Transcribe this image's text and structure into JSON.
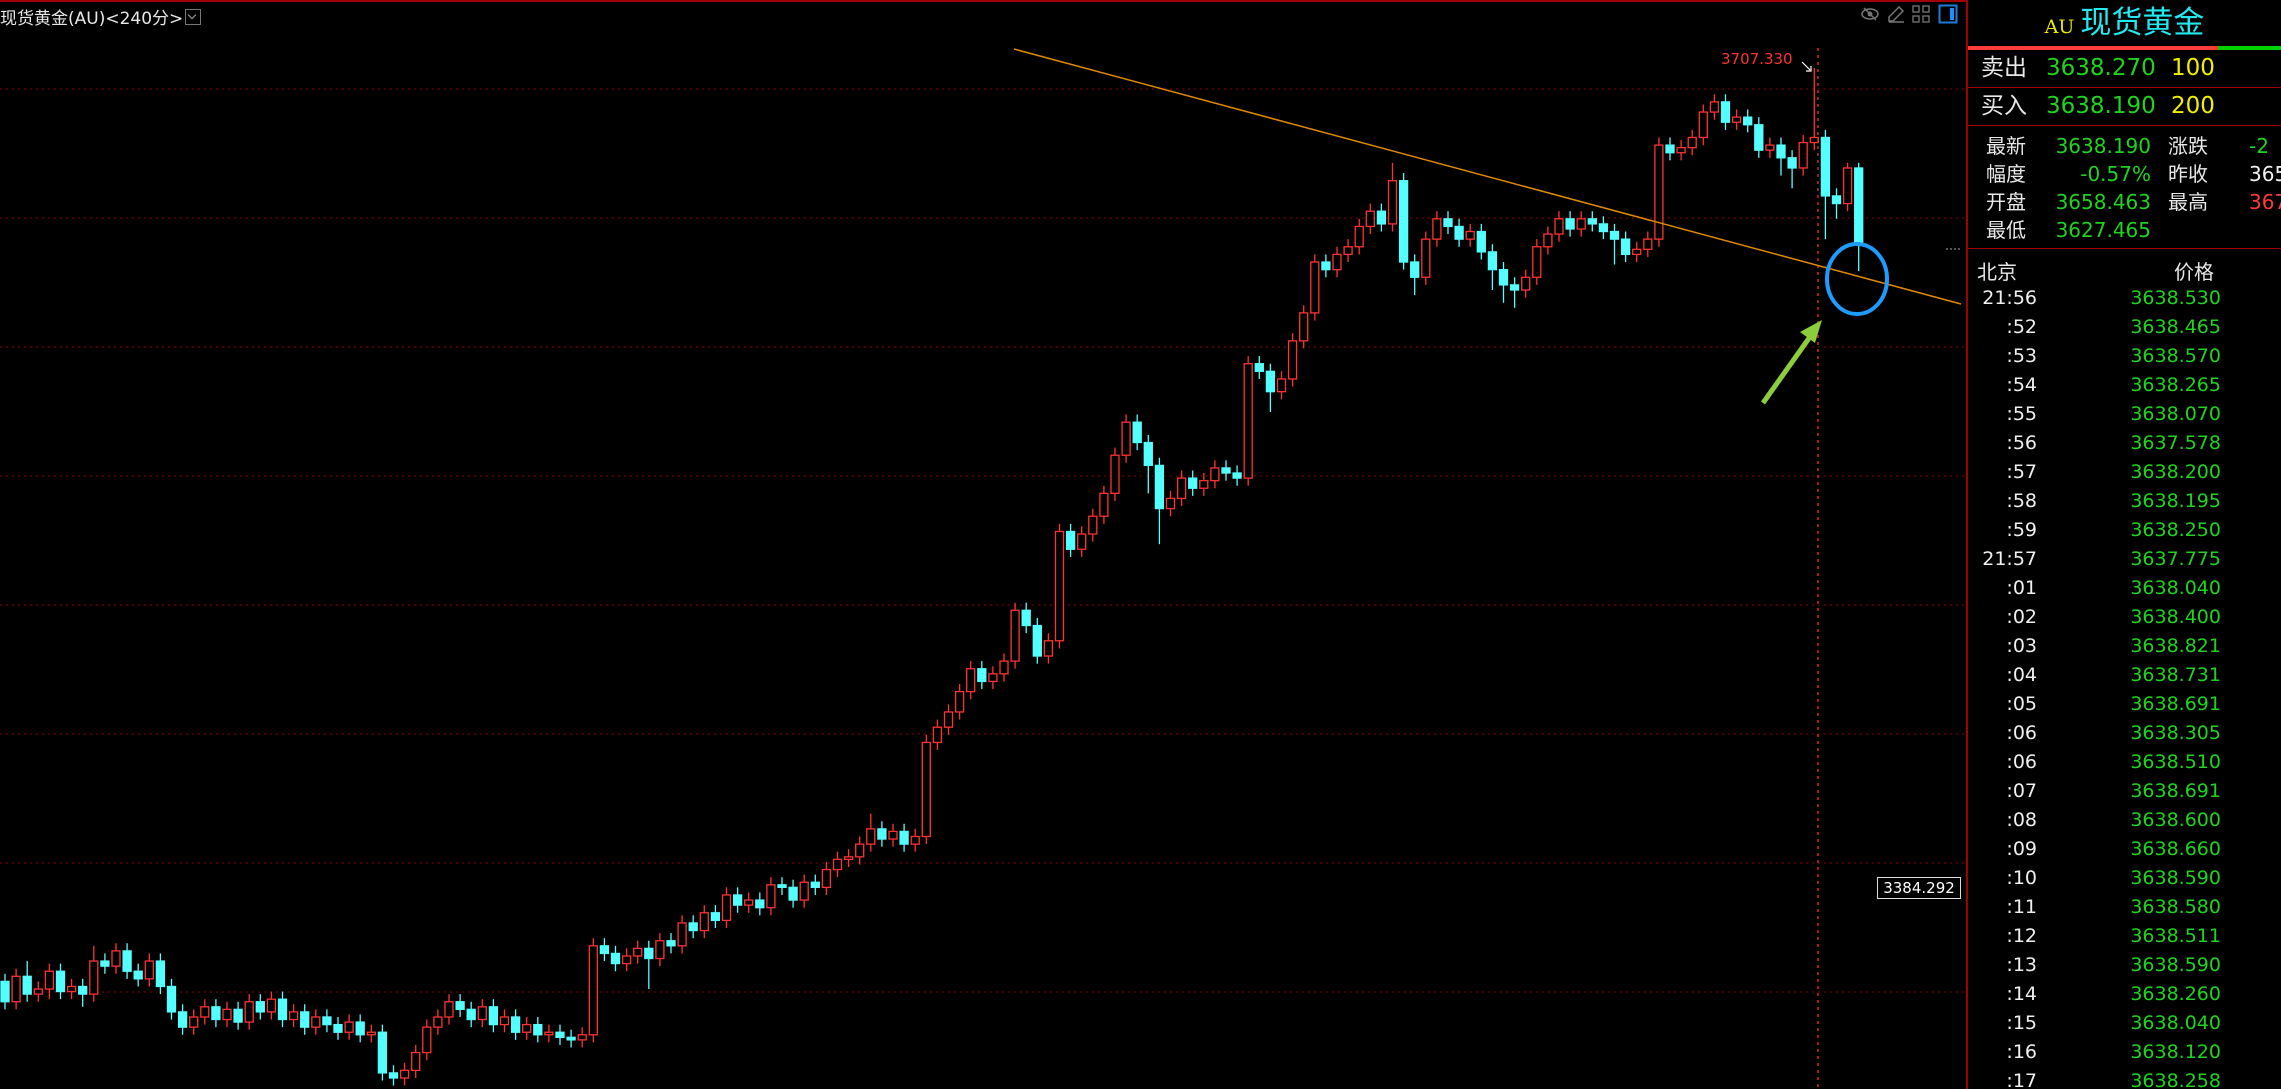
{
  "header": {
    "title": "现货黄金(AU)<240分>",
    "toolbar_icons": [
      "eye-hidden-icon",
      "pencil-icon",
      "grid-layout-icon",
      "side-panel-icon"
    ]
  },
  "chart": {
    "high_marker": "3707.330",
    "price_box": "3384.292",
    "colors": {
      "up": "#ff3232",
      "down": "#54ffff",
      "trendline": "#e08a00",
      "annotation_circle": "#1e9bff",
      "annotation_arrow": "#8ccd3c",
      "grid": "#8b0000"
    }
  },
  "chart_data": {
    "type": "candlestick",
    "title": "现货黄金(AU)<240分>",
    "fields": [
      "open",
      "high",
      "low",
      "close"
    ],
    "candles": [
      [
        3348,
        3351,
        3337,
        3340
      ],
      [
        3340,
        3353,
        3337,
        3350
      ],
      [
        3350,
        3356,
        3340,
        3343
      ],
      [
        3343,
        3348,
        3340,
        3345
      ],
      [
        3345,
        3355,
        3341,
        3352
      ],
      [
        3352,
        3355,
        3341,
        3344
      ],
      [
        3344,
        3349,
        3341,
        3346
      ],
      [
        3346,
        3349,
        3338,
        3343
      ],
      [
        3343,
        3362,
        3340,
        3356
      ],
      [
        3356,
        3359,
        3351,
        3354
      ],
      [
        3354,
        3363,
        3351,
        3360
      ],
      [
        3360,
        3363,
        3349,
        3352
      ],
      [
        3352,
        3355,
        3346,
        3349
      ],
      [
        3349,
        3359,
        3346,
        3356
      ],
      [
        3356,
        3359,
        3343,
        3346
      ],
      [
        3346,
        3349,
        3333,
        3336
      ],
      [
        3336,
        3339,
        3327,
        3330
      ],
      [
        3330,
        3337,
        3327,
        3334
      ],
      [
        3334,
        3341,
        3331,
        3338
      ],
      [
        3338,
        3341,
        3330,
        3333
      ],
      [
        3333,
        3340,
        3330,
        3337
      ],
      [
        3337,
        3340,
        3329,
        3332
      ],
      [
        3332,
        3343,
        3329,
        3340
      ],
      [
        3340,
        3343,
        3333,
        3336
      ],
      [
        3336,
        3344,
        3333,
        3341
      ],
      [
        3341,
        3344,
        3330,
        3333
      ],
      [
        3333,
        3339,
        3330,
        3336
      ],
      [
        3336,
        3339,
        3327,
        3330
      ],
      [
        3330,
        3337,
        3327,
        3334
      ],
      [
        3334,
        3337,
        3328,
        3331
      ],
      [
        3331,
        3334,
        3325,
        3328
      ],
      [
        3328,
        3335,
        3325,
        3332
      ],
      [
        3332,
        3335,
        3324,
        3327
      ],
      [
        3327,
        3331,
        3324,
        3328
      ],
      [
        3328,
        3331,
        3309,
        3312
      ],
      [
        3312,
        3315,
        3307,
        3310
      ],
      [
        3310,
        3316,
        3307,
        3313
      ],
      [
        3313,
        3323,
        3310,
        3320
      ],
      [
        3320,
        3333,
        3317,
        3330
      ],
      [
        3330,
        3337,
        3327,
        3334
      ],
      [
        3334,
        3343,
        3331,
        3340
      ],
      [
        3340,
        3343,
        3334,
        3337
      ],
      [
        3337,
        3340,
        3330,
        3333
      ],
      [
        3333,
        3341,
        3330,
        3338
      ],
      [
        3338,
        3341,
        3328,
        3331
      ],
      [
        3331,
        3337,
        3328,
        3334
      ],
      [
        3334,
        3337,
        3325,
        3328
      ],
      [
        3328,
        3334,
        3325,
        3331
      ],
      [
        3331,
        3334,
        3324,
        3327
      ],
      [
        3327,
        3331,
        3324,
        3328
      ],
      [
        3328,
        3331,
        3323,
        3326
      ],
      [
        3326,
        3329,
        3322,
        3325
      ],
      [
        3325,
        3330,
        3322,
        3327
      ],
      [
        3327,
        3365,
        3324,
        3362
      ],
      [
        3362,
        3365,
        3356,
        3359
      ],
      [
        3359,
        3362,
        3352,
        3355
      ],
      [
        3355,
        3361,
        3352,
        3358
      ],
      [
        3358,
        3364,
        3355,
        3361
      ],
      [
        3361,
        3364,
        3345,
        3357
      ],
      [
        3357,
        3367,
        3354,
        3364
      ],
      [
        3364,
        3367,
        3359,
        3362
      ],
      [
        3362,
        3374,
        3359,
        3371
      ],
      [
        3371,
        3374,
        3365,
        3368
      ],
      [
        3368,
        3378,
        3365,
        3375
      ],
      [
        3375,
        3378,
        3369,
        3372
      ],
      [
        3372,
        3385,
        3369,
        3382
      ],
      [
        3382,
        3385,
        3375,
        3378
      ],
      [
        3378,
        3383,
        3375,
        3380
      ],
      [
        3380,
        3383,
        3374,
        3377
      ],
      [
        3377,
        3389,
        3374,
        3386
      ],
      [
        3386,
        3389,
        3382,
        3385
      ],
      [
        3385,
        3388,
        3377,
        3380
      ],
      [
        3380,
        3390,
        3377,
        3387
      ],
      [
        3387,
        3390,
        3382,
        3385
      ],
      [
        3385,
        3395,
        3382,
        3392
      ],
      [
        3392,
        3399,
        3389,
        3396
      ],
      [
        3396,
        3400,
        3393,
        3397
      ],
      [
        3397,
        3405,
        3394,
        3402
      ],
      [
        3402,
        3414,
        3399,
        3408
      ],
      [
        3408,
        3411,
        3401,
        3404
      ],
      [
        3404,
        3410,
        3401,
        3407
      ],
      [
        3407,
        3410,
        3399,
        3402
      ],
      [
        3402,
        3408,
        3399,
        3405
      ],
      [
        3405,
        3445,
        3402,
        3442
      ],
      [
        3442,
        3451,
        3439,
        3448
      ],
      [
        3448,
        3457,
        3445,
        3454
      ],
      [
        3454,
        3465,
        3451,
        3462
      ],
      [
        3462,
        3474,
        3459,
        3471
      ],
      [
        3471,
        3474,
        3463,
        3466
      ],
      [
        3466,
        3472,
        3463,
        3469
      ],
      [
        3469,
        3477,
        3466,
        3474
      ],
      [
        3474,
        3497,
        3471,
        3494
      ],
      [
        3494,
        3497,
        3485,
        3488
      ],
      [
        3488,
        3491,
        3473,
        3476
      ],
      [
        3476,
        3485,
        3473,
        3482
      ],
      [
        3482,
        3528,
        3479,
        3525
      ],
      [
        3525,
        3528,
        3515,
        3518
      ],
      [
        3518,
        3527,
        3515,
        3524
      ],
      [
        3524,
        3534,
        3521,
        3531
      ],
      [
        3531,
        3543,
        3528,
        3540
      ],
      [
        3540,
        3558,
        3537,
        3555
      ],
      [
        3555,
        3571,
        3552,
        3568
      ],
      [
        3568,
        3571,
        3557,
        3560
      ],
      [
        3560,
        3563,
        3540,
        3551
      ],
      [
        3551,
        3554,
        3520,
        3534
      ],
      [
        3534,
        3541,
        3531,
        3538
      ],
      [
        3538,
        3549,
        3535,
        3546
      ],
      [
        3546,
        3549,
        3539,
        3542
      ],
      [
        3542,
        3548,
        3539,
        3545
      ],
      [
        3545,
        3553,
        3542,
        3550
      ],
      [
        3550,
        3553,
        3545,
        3548
      ],
      [
        3548,
        3551,
        3543,
        3546
      ],
      [
        3546,
        3594,
        3543,
        3591
      ],
      [
        3591,
        3594,
        3585,
        3588
      ],
      [
        3588,
        3591,
        3572,
        3580
      ],
      [
        3580,
        3588,
        3577,
        3585
      ],
      [
        3585,
        3603,
        3582,
        3600
      ],
      [
        3600,
        3614,
        3597,
        3611
      ],
      [
        3611,
        3634,
        3608,
        3631
      ],
      [
        3631,
        3634,
        3625,
        3628
      ],
      [
        3628,
        3637,
        3625,
        3634
      ],
      [
        3634,
        3640,
        3631,
        3637
      ],
      [
        3637,
        3648,
        3634,
        3645
      ],
      [
        3645,
        3654,
        3642,
        3651
      ],
      [
        3651,
        3654,
        3643,
        3646
      ],
      [
        3646,
        3670,
        3643,
        3663
      ],
      [
        3663,
        3666,
        3628,
        3631
      ],
      [
        3631,
        3634,
        3618,
        3625
      ],
      [
        3625,
        3643,
        3622,
        3640
      ],
      [
        3640,
        3651,
        3637,
        3648
      ],
      [
        3648,
        3651,
        3642,
        3645
      ],
      [
        3645,
        3648,
        3637,
        3640
      ],
      [
        3640,
        3646,
        3637,
        3643
      ],
      [
        3643,
        3646,
        3632,
        3635
      ],
      [
        3635,
        3638,
        3620,
        3628
      ],
      [
        3628,
        3631,
        3615,
        3622
      ],
      [
        3622,
        3625,
        3613,
        3620
      ],
      [
        3620,
        3628,
        3617,
        3625
      ],
      [
        3625,
        3640,
        3622,
        3637
      ],
      [
        3637,
        3645,
        3634,
        3642
      ],
      [
        3642,
        3651,
        3639,
        3648
      ],
      [
        3648,
        3651,
        3641,
        3644
      ],
      [
        3644,
        3651,
        3641,
        3648
      ],
      [
        3648,
        3651,
        3643,
        3646
      ],
      [
        3646,
        3649,
        3640,
        3643
      ],
      [
        3643,
        3646,
        3630,
        3640
      ],
      [
        3640,
        3643,
        3631,
        3634
      ],
      [
        3634,
        3639,
        3631,
        3636
      ],
      [
        3636,
        3643,
        3633,
        3640
      ],
      [
        3640,
        3680,
        3637,
        3677
      ],
      [
        3677,
        3680,
        3671,
        3674
      ],
      [
        3674,
        3679,
        3671,
        3676
      ],
      [
        3676,
        3683,
        3673,
        3680
      ],
      [
        3680,
        3693,
        3677,
        3690
      ],
      [
        3690,
        3697,
        3687,
        3694
      ],
      [
        3694,
        3697,
        3683,
        3686
      ],
      [
        3686,
        3691,
        3683,
        3688
      ],
      [
        3688,
        3691,
        3682,
        3685
      ],
      [
        3685,
        3688,
        3672,
        3675
      ],
      [
        3675,
        3680,
        3672,
        3677
      ],
      [
        3677,
        3680,
        3665,
        3672
      ],
      [
        3672,
        3675,
        3660,
        3668
      ],
      [
        3668,
        3681,
        3665,
        3678
      ],
      [
        3678,
        3707.33,
        3675,
        3680
      ],
      [
        3680,
        3683,
        3640,
        3657
      ],
      [
        3657,
        3660,
        3648,
        3654
      ],
      [
        3654,
        3670,
        3651,
        3668
      ],
      [
        3668,
        3670,
        3627.47,
        3638.19
      ]
    ],
    "annotations": [
      "descending trendline",
      "circle around last candle",
      "arrow pointing to last candle"
    ],
    "grid": true
  },
  "panel": {
    "symbol": "AU",
    "name": "现货黄金",
    "buy_ratio": 0.8,
    "ask": {
      "label": "卖出",
      "price": "3638.270",
      "volume": "100"
    },
    "bid": {
      "label": "买入",
      "price": "3638.190",
      "volume": "200"
    },
    "stats": [
      {
        "l1": "最新",
        "v1": "3638.190",
        "l2": "涨跌",
        "v2": "-2",
        "v2_color": "#1ed41e"
      },
      {
        "l1": "幅度",
        "v1": "-0.57%",
        "l2": "昨收",
        "v2": "365",
        "v2_color": "#f0f0f0"
      },
      {
        "l1": "开盘",
        "v1": "3658.463",
        "l2": "最高",
        "v2": "367",
        "v2_color": "#ff3a3a"
      },
      {
        "l1": "最低",
        "v1": "3627.465",
        "l2": "",
        "v2": ""
      }
    ],
    "list_headers": {
      "time": "北京",
      "price": "价格"
    },
    "ticks": [
      {
        "t": "21:56",
        "p": "3638.530"
      },
      {
        "t": ":52",
        "p": "3638.465"
      },
      {
        "t": ":53",
        "p": "3638.570"
      },
      {
        "t": ":54",
        "p": "3638.265"
      },
      {
        "t": ":55",
        "p": "3638.070"
      },
      {
        "t": ":56",
        "p": "3637.578"
      },
      {
        "t": ":57",
        "p": "3638.200"
      },
      {
        "t": ":58",
        "p": "3638.195"
      },
      {
        "t": ":59",
        "p": "3638.250"
      },
      {
        "t": "21:57",
        "p": "3637.775"
      },
      {
        "t": ":01",
        "p": "3638.040"
      },
      {
        "t": ":02",
        "p": "3638.400"
      },
      {
        "t": ":03",
        "p": "3638.821"
      },
      {
        "t": ":04",
        "p": "3638.731"
      },
      {
        "t": ":05",
        "p": "3638.691"
      },
      {
        "t": ":06",
        "p": "3638.305"
      },
      {
        "t": ":06",
        "p": "3638.510"
      },
      {
        "t": ":07",
        "p": "3638.691"
      },
      {
        "t": ":08",
        "p": "3638.600"
      },
      {
        "t": ":09",
        "p": "3638.660"
      },
      {
        "t": ":10",
        "p": "3638.590"
      },
      {
        "t": ":11",
        "p": "3638.580"
      },
      {
        "t": ":12",
        "p": "3638.511"
      },
      {
        "t": ":13",
        "p": "3638.590"
      },
      {
        "t": ":14",
        "p": "3638.260"
      },
      {
        "t": ":15",
        "p": "3638.040"
      },
      {
        "t": ":16",
        "p": "3638.120"
      },
      {
        "t": ":17",
        "p": "3638.258"
      }
    ]
  }
}
